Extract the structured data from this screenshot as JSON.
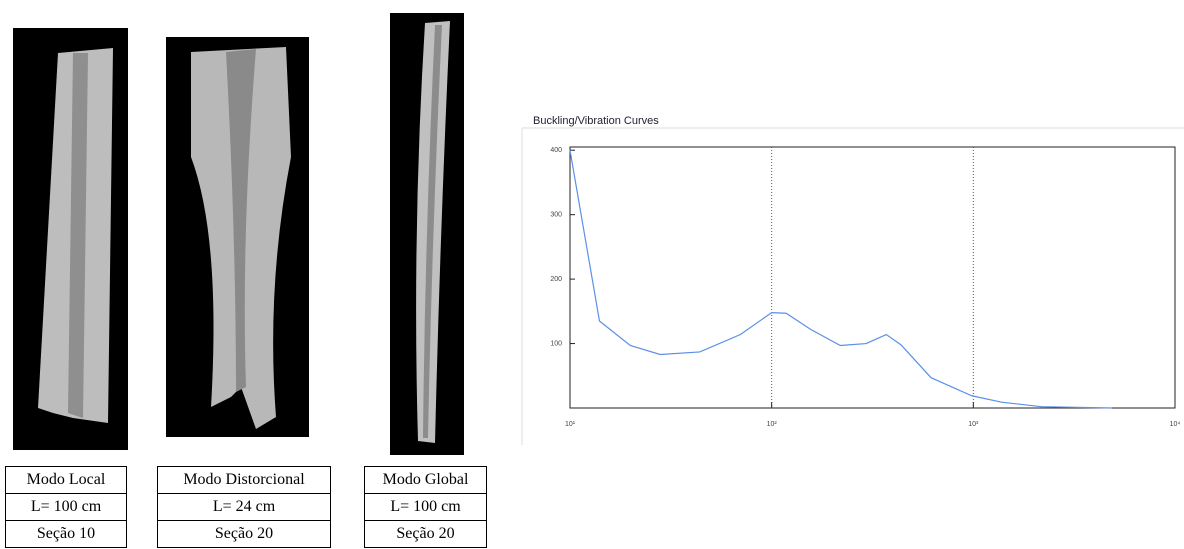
{
  "panels": [
    {
      "rows": [
        "Modo Local",
        "L= 100 cm",
        "Seção 10"
      ]
    },
    {
      "rows": [
        "Modo Distorcional",
        "L= 24 cm",
        "Seção 20"
      ]
    },
    {
      "rows": [
        "Modo Global",
        "L= 100 cm",
        "Seção 20"
      ]
    }
  ],
  "chart_data": {
    "type": "line",
    "title": "Buckling/Vibration Curves",
    "x": [
      10,
      14,
      19.9,
      28,
      44,
      70,
      100,
      118,
      156,
      219,
      294,
      370,
      438,
      617,
      982,
      1380,
      2180,
      4880
    ],
    "series": [
      {
        "color": "#5b8fe8",
        "values": [
          400,
          135,
          97,
          83,
          87,
          114,
          148,
          147,
          122,
          97,
          100,
          114,
          98,
          47,
          19,
          9,
          2,
          0
        ]
      }
    ],
    "xlim": [
      10,
      10000
    ],
    "ylim": [
      0,
      405
    ],
    "xscale": "log",
    "xticks": [
      {
        "value": 10,
        "label": "10¹"
      },
      {
        "value": 100,
        "label": "10²"
      },
      {
        "value": 1000,
        "label": "10³"
      },
      {
        "value": 10000,
        "label": "10⁴"
      }
    ],
    "yticks": [
      100,
      200,
      300,
      400
    ],
    "grid": "x"
  }
}
